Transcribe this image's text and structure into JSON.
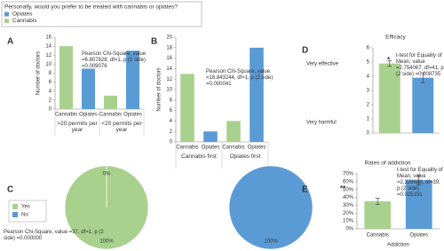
{
  "legend": {
    "title": "Personally, would you prefer to be treated with cannabis or opiates?",
    "items": [
      {
        "name": "Opiates",
        "color": "#5b9bd5"
      },
      {
        "name": "Cannabis",
        "color": "#a9d18e"
      }
    ]
  },
  "chart_data": [
    {
      "type": "grouped_bar",
      "panel": "A",
      "y_label": "Number of doctors",
      "groups": [
        ">20 permits per year",
        "<20 permits per year"
      ],
      "categories": [
        "Cannabis",
        "Opiates",
        "Cannabis",
        "Opiates"
      ],
      "values": [
        14,
        9,
        3,
        13
      ],
      "colors": [
        "#a9d18e",
        "#5b9bd5",
        "#a9d18e",
        "#5b9bd5"
      ],
      "ylim": [
        0,
        16
      ],
      "yticks": [
        0,
        2,
        4,
        6,
        8,
        10,
        12,
        14,
        16
      ],
      "annotation": "Pearson Chi-Square, value =6.807828, df=1, p (2 side) =0.009076"
    },
    {
      "type": "grouped_bar",
      "panel": "B",
      "y_label": "Number of doctors",
      "groups": [
        "Cannabis first",
        "Opiates first"
      ],
      "categories": [
        "Cannabis",
        "Opiates",
        "Cannabis",
        "Opiates"
      ],
      "values": [
        13,
        2,
        4,
        18
      ],
      "colors": [
        "#a9d18e",
        "#5b9bd5",
        "#a9d18e",
        "#5b9bd5"
      ],
      "ylim": [
        0,
        20
      ],
      "yticks": [
        0,
        2,
        4,
        6,
        8,
        10,
        12,
        14,
        16,
        18,
        20
      ],
      "annotation": "Pearson Chi-Square, value =16.843244, df=1, p (2 side) =0.000041"
    },
    {
      "type": "pie",
      "panel": "C",
      "legend": [
        {
          "name": "Yes",
          "color": "#a9d18e"
        },
        {
          "name": "No",
          "color": "#5b9bd5"
        }
      ],
      "pies": [
        {
          "values": [
            100,
            0
          ],
          "value_labels": [
            "100%",
            "0%"
          ]
        },
        {
          "values": [
            0,
            100
          ],
          "value_labels": [
            "0%",
            "100%"
          ]
        }
      ],
      "annotation": "Pearson Chi-Square, value =37, df=1, p (2 side) =0.000000"
    },
    {
      "type": "error_bar",
      "panel": "D",
      "title": "Efficacy",
      "y_text": [
        "Very effective",
        "Very harmful"
      ],
      "values": [
        4.9,
        3.9
      ],
      "errors": [
        0.2,
        0.35
      ],
      "colors": [
        "#a9d18e",
        "#5b9bd5"
      ],
      "ylim": [
        0,
        6
      ],
      "yticks": [
        0,
        1,
        2,
        3,
        4,
        5,
        6
      ],
      "significance": "*",
      "annotation": "t-test for Equality of Mean, value =2.754067, df=41, p (2 side) =0.008735"
    },
    {
      "type": "error_bar",
      "panel": "E",
      "title": "Rates of addiction",
      "categories": [
        "Cannabis",
        "Opiates"
      ],
      "x_label": "Addiction",
      "values": [
        35,
        62
      ],
      "errors": [
        4,
        6
      ],
      "colors": [
        "#a9d18e",
        "#5b9bd5"
      ],
      "ylim": [
        0,
        70
      ],
      "yticks": [
        {
          "value": 0,
          "label": "0%"
        },
        {
          "value": 10,
          "label": "10%"
        },
        {
          "value": 20,
          "label": "20%"
        },
        {
          "value": 30,
          "label": "30%"
        },
        {
          "value": 40,
          "label": "40%"
        },
        {
          "value": 50,
          "label": "50%"
        },
        {
          "value": 60,
          "label": "60%"
        },
        {
          "value": 70,
          "label": "70%"
        }
      ],
      "significance": "**",
      "annotation": "t-test for Equality of Mean, value =2.326688, df=39, p (2 side) =0.025151"
    }
  ]
}
